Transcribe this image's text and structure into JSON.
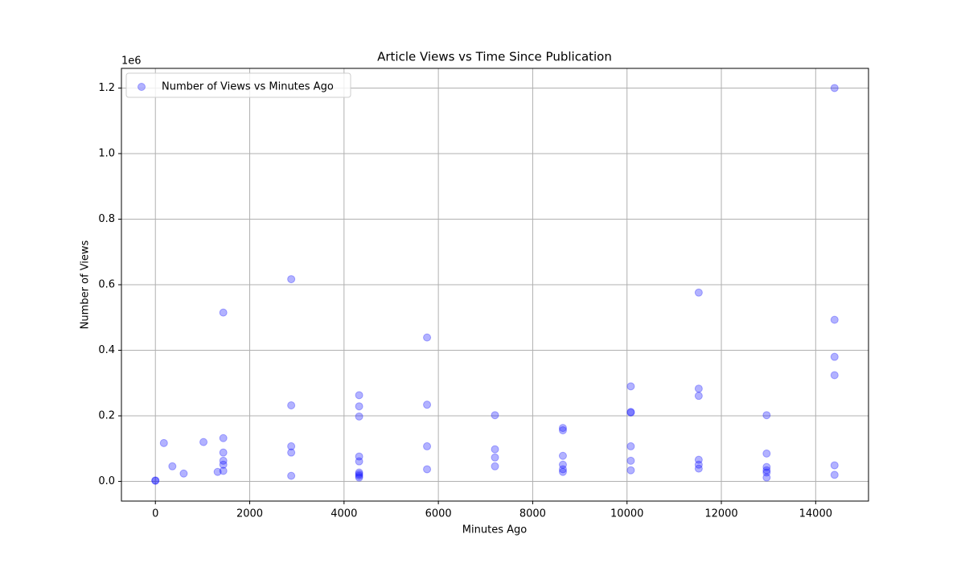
{
  "chart_data": {
    "type": "scatter",
    "title": "Article Views vs Time Since Publication",
    "x_label": "Minutes Ago",
    "y_label": "Number of Views",
    "y_offset_label": "1e6",
    "x": [
      0,
      0,
      180,
      360,
      600,
      1020,
      1320,
      1440,
      1440,
      1440,
      1440,
      1440,
      1440,
      2880,
      2880,
      2880,
      2880,
      2880,
      4320,
      4320,
      4320,
      4320,
      4320,
      4320,
      4320,
      4320,
      4320,
      5760,
      5760,
      5760,
      5760,
      7200,
      7200,
      7200,
      7200,
      8640,
      8640,
      8640,
      8640,
      8640,
      8640,
      10080,
      10080,
      10080,
      10080,
      10080,
      10080,
      11520,
      11520,
      11520,
      11520,
      11520,
      11520,
      12960,
      12960,
      12960,
      12960,
      12960,
      12960,
      14400,
      14400,
      14400,
      14400,
      14400,
      14400
    ],
    "series": [
      {
        "name": "Number of Views vs Minutes Ago",
        "color": "#0000ff",
        "opacity": 0.3,
        "values": [
          3000,
          2000,
          117000,
          46000,
          24000,
          120000,
          29000,
          515000,
          132000,
          88000,
          63000,
          51000,
          32000,
          617000,
          232000,
          107000,
          88000,
          17000,
          263000,
          229000,
          198000,
          76000,
          61000,
          27000,
          22000,
          17000,
          12000,
          439000,
          234000,
          107000,
          37000,
          202000,
          98000,
          73000,
          46000,
          163000,
          156000,
          78000,
          51000,
          37000,
          29000,
          290000,
          212000,
          210000,
          107000,
          63000,
          34000,
          576000,
          283000,
          261000,
          66000,
          51000,
          39000,
          202000,
          85000,
          44000,
          34000,
          27000,
          12000,
          1200000,
          493000,
          380000,
          324000,
          49000,
          20000
        ]
      }
    ],
    "xlim": [
      -720,
      15120
    ],
    "ylim": [
      -60000,
      1260000
    ],
    "xticks": [
      0,
      2000,
      4000,
      6000,
      8000,
      10000,
      12000,
      14000
    ],
    "yticks": [
      {
        "value": 0,
        "label": "0.0"
      },
      {
        "value": 200000,
        "label": "0.2"
      },
      {
        "value": 400000,
        "label": "0.4"
      },
      {
        "value": 600000,
        "label": "0.6"
      },
      {
        "value": 800000,
        "label": "0.8"
      },
      {
        "value": 1000000,
        "label": "1.0"
      },
      {
        "value": 1200000,
        "label": "1.2"
      }
    ],
    "grid": true,
    "legend": "upper-left"
  }
}
